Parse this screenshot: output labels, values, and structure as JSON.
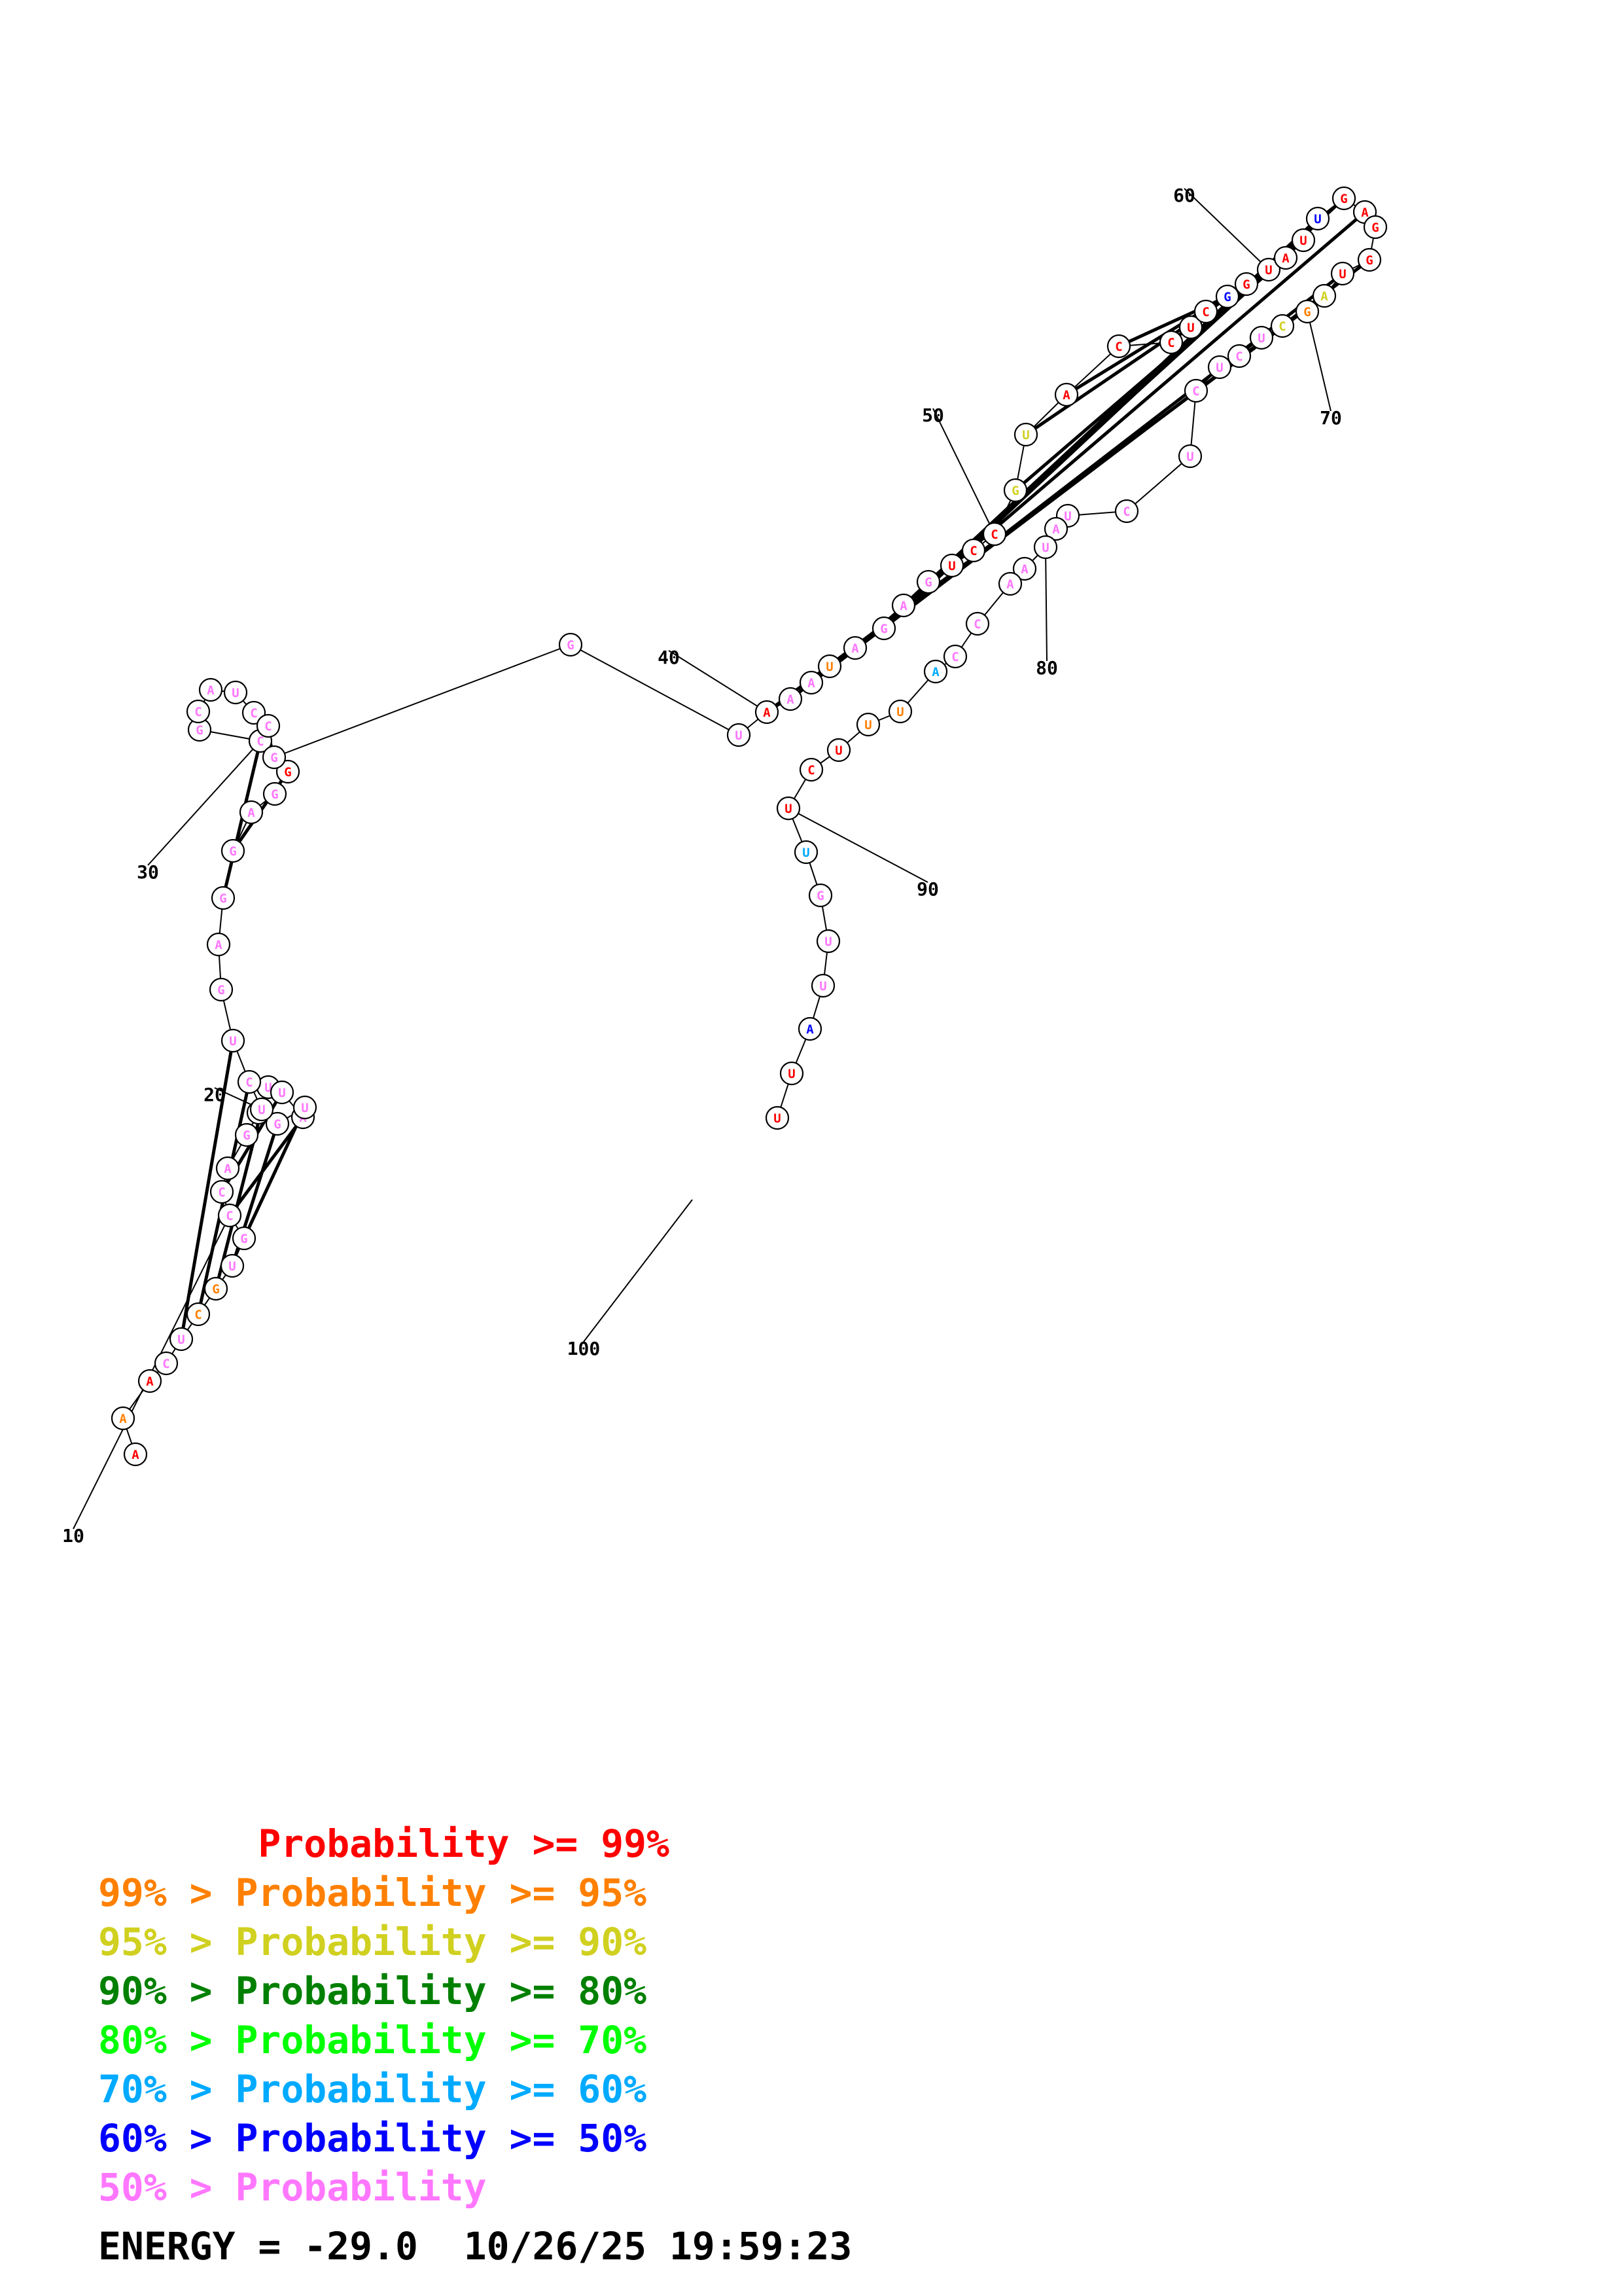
{
  "structure": {
    "colors": {
      "R": "#ff0000",
      "O": "#ff8000",
      "Y": "#d0d020",
      "B": "#0000ff",
      "C": "#00aaff",
      "P": "#ff77ff"
    },
    "nucleotides": [
      {
        "n": "A",
        "c": "R"
      },
      {
        "n": "A",
        "c": "O"
      },
      {
        "n": "A",
        "c": "R"
      },
      {
        "n": "C",
        "c": "P"
      },
      {
        "n": "U",
        "c": "P"
      },
      {
        "n": "C",
        "c": "O"
      },
      {
        "n": "G",
        "c": "O"
      },
      {
        "n": "U",
        "c": "P"
      },
      {
        "n": "G",
        "c": "P"
      },
      {
        "n": "C",
        "c": "P"
      },
      {
        "n": "C",
        "c": "P"
      },
      {
        "n": "A",
        "c": "P"
      },
      {
        "n": "G",
        "c": "P"
      },
      {
        "n": "C",
        "c": "P"
      },
      {
        "n": "U",
        "c": "P"
      },
      {
        "n": "U",
        "c": "P"
      },
      {
        "n": "A",
        "c": "P"
      },
      {
        "n": "U",
        "c": "P"
      },
      {
        "n": "G",
        "c": "P"
      },
      {
        "n": "U",
        "c": "P"
      },
      {
        "n": "C",
        "c": "P"
      },
      {
        "n": "U",
        "c": "P"
      },
      {
        "n": "G",
        "c": "P"
      },
      {
        "n": "A",
        "c": "P"
      },
      {
        "n": "G",
        "c": "P"
      },
      {
        "n": "G",
        "c": "P"
      },
      {
        "n": "A",
        "c": "P"
      },
      {
        "n": "G",
        "c": "P"
      },
      {
        "n": "G",
        "c": "R"
      },
      {
        "n": "C",
        "c": "P"
      },
      {
        "n": "G",
        "c": "P"
      },
      {
        "n": "C",
        "c": "P"
      },
      {
        "n": "A",
        "c": "P"
      },
      {
        "n": "U",
        "c": "P"
      },
      {
        "n": "C",
        "c": "P"
      },
      {
        "n": "C",
        "c": "P"
      },
      {
        "n": "G",
        "c": "P"
      },
      {
        "n": "G",
        "c": "P"
      },
      {
        "n": "U",
        "c": "P"
      },
      {
        "n": "A",
        "c": "R"
      },
      {
        "n": "A",
        "c": "P"
      },
      {
        "n": "A",
        "c": "P"
      },
      {
        "n": "U",
        "c": "O"
      },
      {
        "n": "A",
        "c": "P"
      },
      {
        "n": "G",
        "c": "P"
      },
      {
        "n": "A",
        "c": "P"
      },
      {
        "n": "G",
        "c": "P"
      },
      {
        "n": "U",
        "c": "R"
      },
      {
        "n": "C",
        "c": "R"
      },
      {
        "n": "C",
        "c": "R"
      },
      {
        "n": "G",
        "c": "Y"
      },
      {
        "n": "U",
        "c": "Y"
      },
      {
        "n": "A",
        "c": "R"
      },
      {
        "n": "C",
        "c": "R"
      },
      {
        "n": "C",
        "c": "R"
      },
      {
        "n": "U",
        "c": "R"
      },
      {
        "n": "C",
        "c": "R"
      },
      {
        "n": "G",
        "c": "B"
      },
      {
        "n": "G",
        "c": "R"
      },
      {
        "n": "U",
        "c": "R"
      },
      {
        "n": "A",
        "c": "R"
      },
      {
        "n": "U",
        "c": "R"
      },
      {
        "n": "U",
        "c": "B"
      },
      {
        "n": "G",
        "c": "R"
      },
      {
        "n": "A",
        "c": "R"
      },
      {
        "n": "G",
        "c": "R"
      },
      {
        "n": "G",
        "c": "R"
      },
      {
        "n": "U",
        "c": "R"
      },
      {
        "n": "A",
        "c": "Y"
      },
      {
        "n": "G",
        "c": "O"
      },
      {
        "n": "C",
        "c": "Y"
      },
      {
        "n": "U",
        "c": "P"
      },
      {
        "n": "C",
        "c": "P"
      },
      {
        "n": "U",
        "c": "P"
      },
      {
        "n": "C",
        "c": "P"
      },
      {
        "n": "U",
        "c": "P"
      },
      {
        "n": "C",
        "c": "P"
      },
      {
        "n": "U",
        "c": "P"
      },
      {
        "n": "A",
        "c": "P"
      },
      {
        "n": "U",
        "c": "P"
      },
      {
        "n": "A",
        "c": "P"
      },
      {
        "n": "A",
        "c": "P"
      },
      {
        "n": "C",
        "c": "P"
      },
      {
        "n": "C",
        "c": "P"
      },
      {
        "n": "A",
        "c": "C"
      },
      {
        "n": "U",
        "c": "O"
      },
      {
        "n": "U",
        "c": "O"
      },
      {
        "n": "U",
        "c": "R"
      },
      {
        "n": "C",
        "c": "R"
      },
      {
        "n": "U",
        "c": "R"
      },
      {
        "n": "U",
        "c": "C"
      },
      {
        "n": "G",
        "c": "P"
      },
      {
        "n": "U",
        "c": "P"
      },
      {
        "n": "U",
        "c": "P"
      },
      {
        "n": "A",
        "c": "B"
      },
      {
        "n": "U",
        "c": "R"
      },
      {
        "n": "U",
        "c": "R"
      }
    ],
    "pairs": [
      [
        4,
        21
      ],
      [
        5,
        20
      ],
      [
        6,
        19
      ],
      [
        7,
        18
      ],
      [
        8,
        17
      ],
      [
        9,
        16
      ],
      [
        10,
        15
      ],
      [
        24,
        29
      ],
      [
        25,
        28
      ],
      [
        39,
        68
      ],
      [
        40,
        67
      ],
      [
        41,
        66
      ],
      [
        43,
        64
      ],
      [
        44,
        63
      ],
      [
        45,
        62
      ],
      [
        46,
        61
      ],
      [
        50,
        60
      ],
      [
        51,
        59
      ],
      [
        52,
        58
      ],
      [
        53,
        57
      ],
      [
        54,
        56
      ]
    ],
    "number_labels": [
      "10",
      "20",
      "30",
      "40",
      "50",
      "60",
      "70",
      "80",
      "90",
      "100"
    ]
  },
  "legend": [
    {
      "text": "       Probability >= 99%",
      "color": "#ff0000"
    },
    {
      "text": "99% > Probability >= 95%",
      "color": "#ff8000"
    },
    {
      "text": "95% > Probability >= 90%",
      "color": "#d0d020"
    },
    {
      "text": "90% > Probability >= 80%",
      "color": "#008000"
    },
    {
      "text": "80% > Probability >= 70%",
      "color": "#00ff00"
    },
    {
      "text": "70% > Probability >= 60%",
      "color": "#00aaff"
    },
    {
      "text": "60% > Probability >= 50%",
      "color": "#0000ff"
    },
    {
      "text": "50% > Probability",
      "color": "#ff77ff"
    }
  ],
  "footer": {
    "energy_text": "ENERGY = -29.0",
    "datetime": "10/26/25 19:59:23"
  }
}
